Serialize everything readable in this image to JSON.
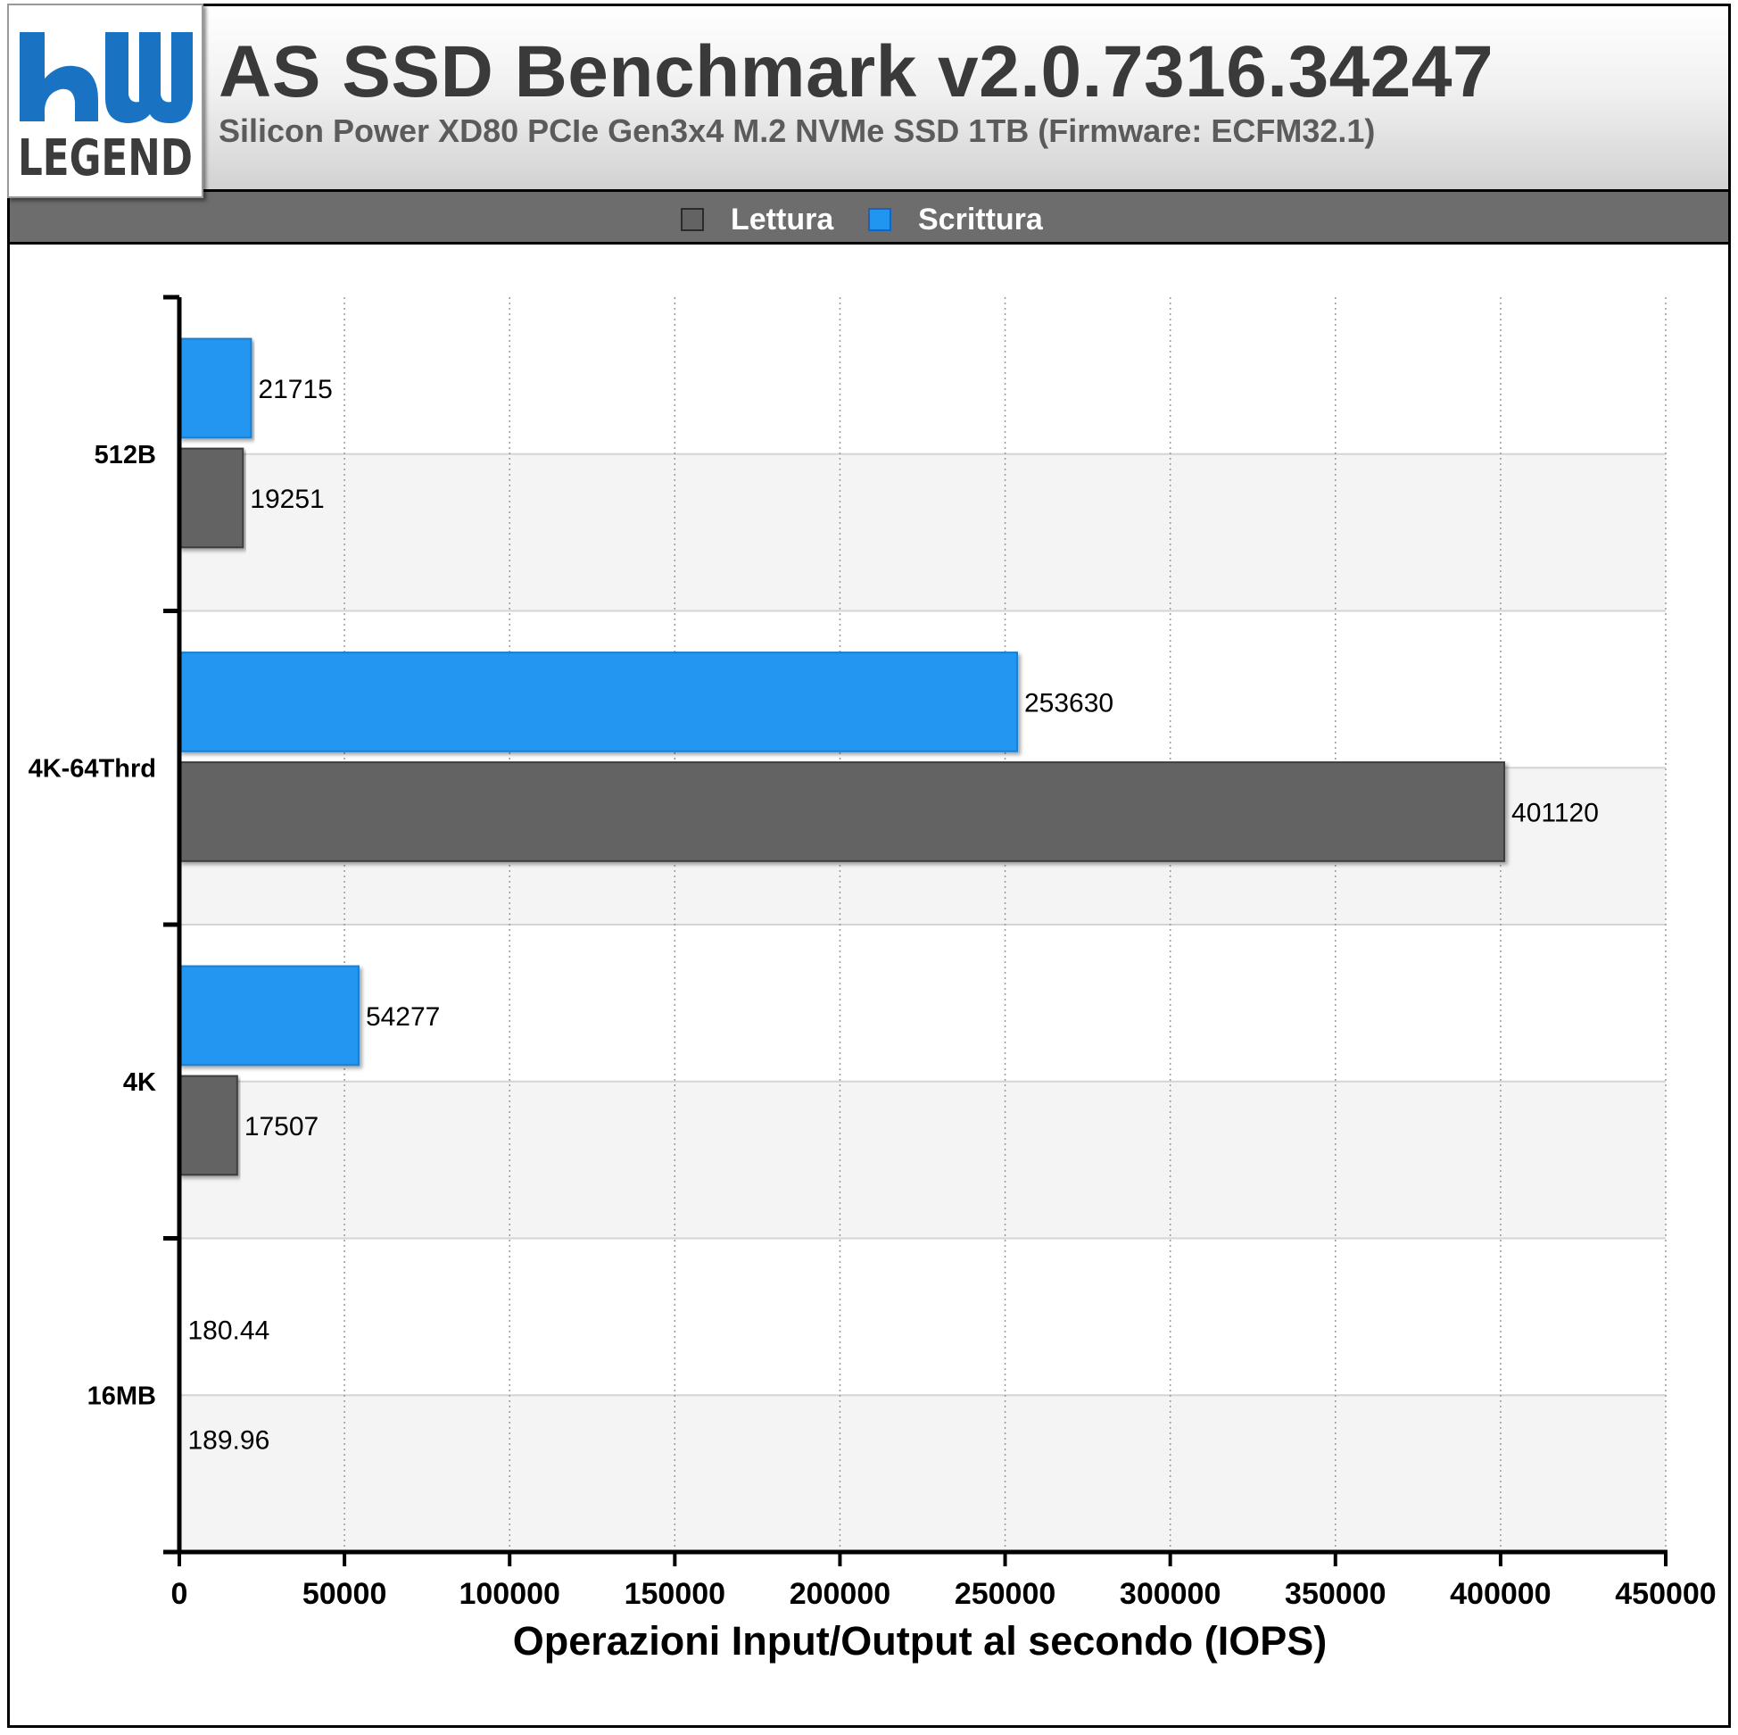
{
  "header": {
    "title": "AS SSD Benchmark v2.0.7316.34247",
    "subtitle": "Silicon Power XD80 PCIe Gen3x4 M.2 NVMe SSD 1TB (Firmware: ECFM32.1)",
    "logo_text": "hw LEGEND"
  },
  "colors": {
    "lettura": "#636363",
    "scrittura": "#2196f0",
    "brand_blue": "#1a73c2"
  },
  "chart_data": {
    "type": "bar",
    "orientation": "horizontal",
    "categories": [
      "512B",
      "4K-64Thrd",
      "4K",
      "16MB"
    ],
    "series": [
      {
        "name": "Scrittura",
        "values": [
          21715,
          253630,
          54277,
          180.44
        ]
      },
      {
        "name": "Lettura",
        "values": [
          19251,
          401120,
          17507,
          189.96
        ]
      }
    ],
    "value_labels": {
      "Scrittura": [
        "21715",
        "253630",
        "54277",
        "180.44"
      ],
      "Lettura": [
        "19251",
        "401120",
        "17507",
        "189.96"
      ]
    },
    "xlabel": "Operazioni Input/Output al secondo (IOPS)",
    "xlim": [
      0,
      450000
    ],
    "xticks": [
      "0",
      "50000",
      "100000",
      "150000",
      "200000",
      "250000",
      "300000",
      "350000",
      "400000",
      "450000"
    ],
    "grid": true,
    "legend_position": "top",
    "legend": [
      "Lettura",
      "Scrittura"
    ]
  }
}
